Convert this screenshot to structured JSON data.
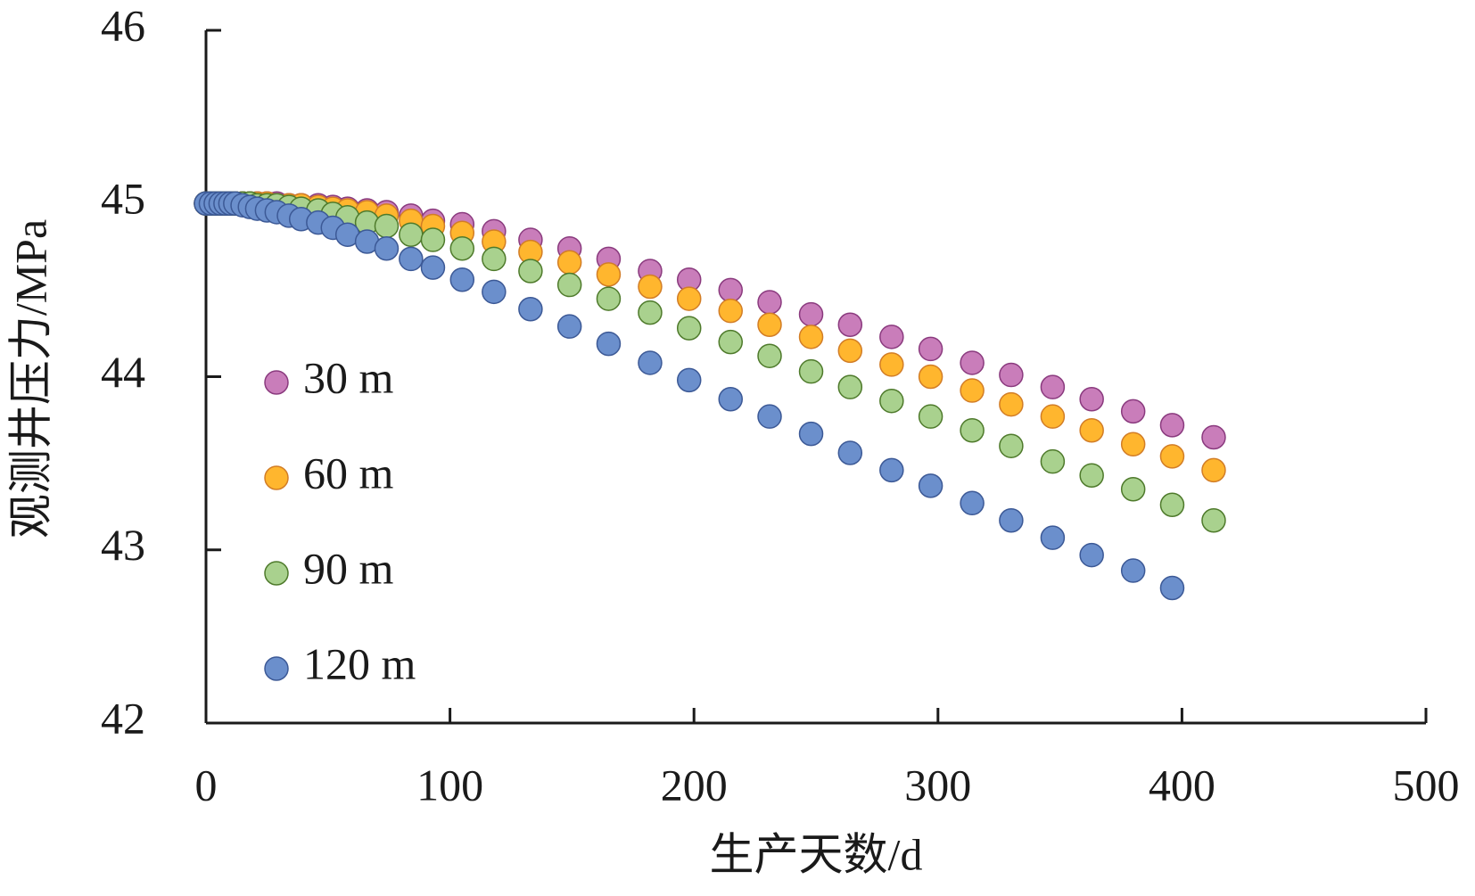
{
  "chart_data": {
    "type": "scatter",
    "xlabel": "生产天数/d",
    "ylabel": "观测井压力/MPa",
    "x": [
      0,
      2,
      4,
      6,
      8,
      10,
      12,
      15,
      18,
      21,
      25,
      29,
      34,
      39,
      46,
      52,
      58,
      66,
      74,
      84,
      93,
      105,
      118,
      133,
      149,
      165,
      182,
      198,
      215,
      231,
      248,
      264,
      281,
      297,
      314,
      330,
      347,
      363,
      380,
      396,
      413
    ],
    "series": [
      {
        "name": "30 m",
        "color": "#c97dba",
        "edgecolor": "#8a3a7e",
        "values": [
          45,
          45,
          45,
          45,
          45,
          45,
          45,
          45,
          45,
          45,
          45,
          45,
          44.99,
          44.99,
          44.99,
          44.98,
          44.97,
          44.96,
          44.95,
          44.93,
          44.9,
          44.88,
          44.84,
          44.79,
          44.74,
          44.68,
          44.61,
          44.56,
          44.5,
          44.43,
          44.36,
          44.3,
          44.23,
          44.16,
          44.08,
          44.01,
          43.94,
          43.87,
          43.8,
          43.72,
          43.65
        ]
      },
      {
        "name": "60 m",
        "color": "#ffb62e",
        "edgecolor": "#d27d26",
        "values": [
          45,
          45,
          45,
          45,
          45,
          45,
          45,
          45,
          45,
          45,
          45,
          44.99,
          44.99,
          44.99,
          44.98,
          44.97,
          44.96,
          44.95,
          44.93,
          44.9,
          44.87,
          44.83,
          44.78,
          44.72,
          44.66,
          44.59,
          44.52,
          44.45,
          44.38,
          44.3,
          44.23,
          44.15,
          44.07,
          44.0,
          43.92,
          43.84,
          43.77,
          43.69,
          43.61,
          43.54,
          43.46
        ]
      },
      {
        "name": "90 m",
        "color": "#a9d18e",
        "edgecolor": "#4e7a2b",
        "values": [
          45,
          45,
          45,
          45,
          45,
          45,
          45,
          45,
          45,
          44.99,
          44.99,
          44.99,
          44.98,
          44.97,
          44.96,
          44.94,
          44.92,
          44.89,
          44.87,
          44.82,
          44.79,
          44.74,
          44.68,
          44.61,
          44.53,
          44.45,
          44.37,
          44.28,
          44.2,
          44.12,
          44.03,
          43.94,
          43.86,
          43.77,
          43.69,
          43.6,
          43.51,
          43.43,
          43.35,
          43.26,
          43.17
        ]
      },
      {
        "name": "120 m",
        "color": "#6b8fcc",
        "edgecolor": "#3c5996",
        "values": [
          45,
          45,
          45,
          45,
          45,
          45,
          45,
          44.99,
          44.98,
          44.97,
          44.96,
          44.95,
          44.93,
          44.91,
          44.89,
          44.86,
          44.82,
          44.78,
          44.74,
          44.68,
          44.63,
          44.56,
          44.49,
          44.39,
          44.29,
          44.19,
          44.08,
          43.98,
          43.87,
          43.77,
          43.67,
          43.56,
          43.46,
          43.37,
          43.27,
          43.17,
          43.07,
          42.97,
          42.88,
          42.78,
          null
        ]
      }
    ],
    "xlim": [
      0,
      500
    ],
    "xticks": [
      0,
      100,
      200,
      300,
      400,
      500
    ],
    "ylim": [
      42,
      46
    ],
    "yticks": [
      42,
      43,
      44,
      45,
      46
    ],
    "legend": "lower left",
    "grid": false
  }
}
